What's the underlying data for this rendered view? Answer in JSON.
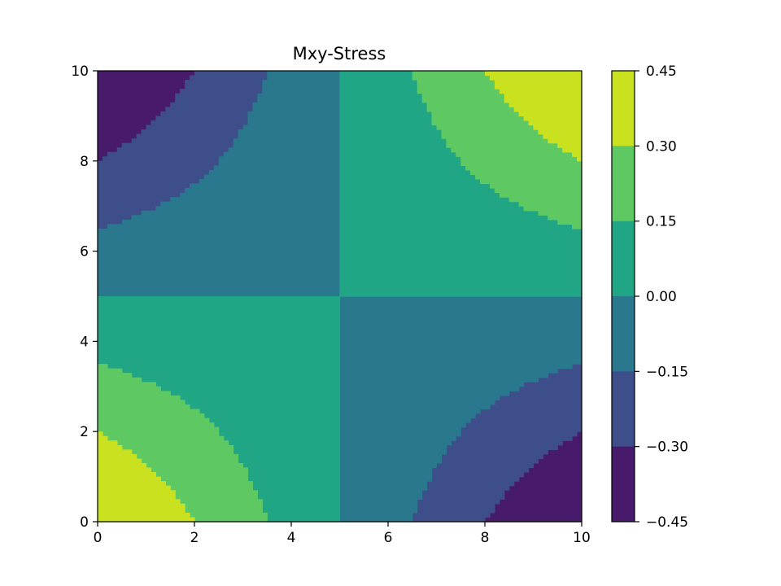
{
  "chart_data": {
    "type": "filled-contour",
    "title": "Mxy-Stress",
    "xlabel": "",
    "ylabel": "",
    "xlim": [
      0,
      10
    ],
    "ylim": [
      0,
      10
    ],
    "x_ticks": [
      0,
      2,
      4,
      6,
      8,
      10
    ],
    "y_ticks": [
      0,
      2,
      4,
      6,
      8,
      10
    ],
    "x_tick_labels": [
      "0",
      "2",
      "4",
      "6",
      "8",
      "10"
    ],
    "y_tick_labels": [
      "0",
      "2",
      "4",
      "6",
      "8",
      "10"
    ],
    "field": "z = (x - 5) * (y - 5) / 50",
    "levels": [
      -0.45,
      -0.3,
      -0.15,
      0.0,
      0.15,
      0.3,
      0.45
    ],
    "colorbar": {
      "tick_values": [
        0.45,
        0.3,
        0.15,
        0.0,
        -0.15,
        -0.3,
        -0.45
      ],
      "tick_labels": [
        "0.45",
        "0.30",
        "0.15",
        "0.00",
        "−0.15",
        "−0.30",
        "−0.45"
      ],
      "colors": [
        "#cae11f",
        "#5ec962",
        "#21a685",
        "#2a788e",
        "#3d4e8a",
        "#481a6c"
      ]
    },
    "grid": false,
    "colormap": "viridis"
  }
}
